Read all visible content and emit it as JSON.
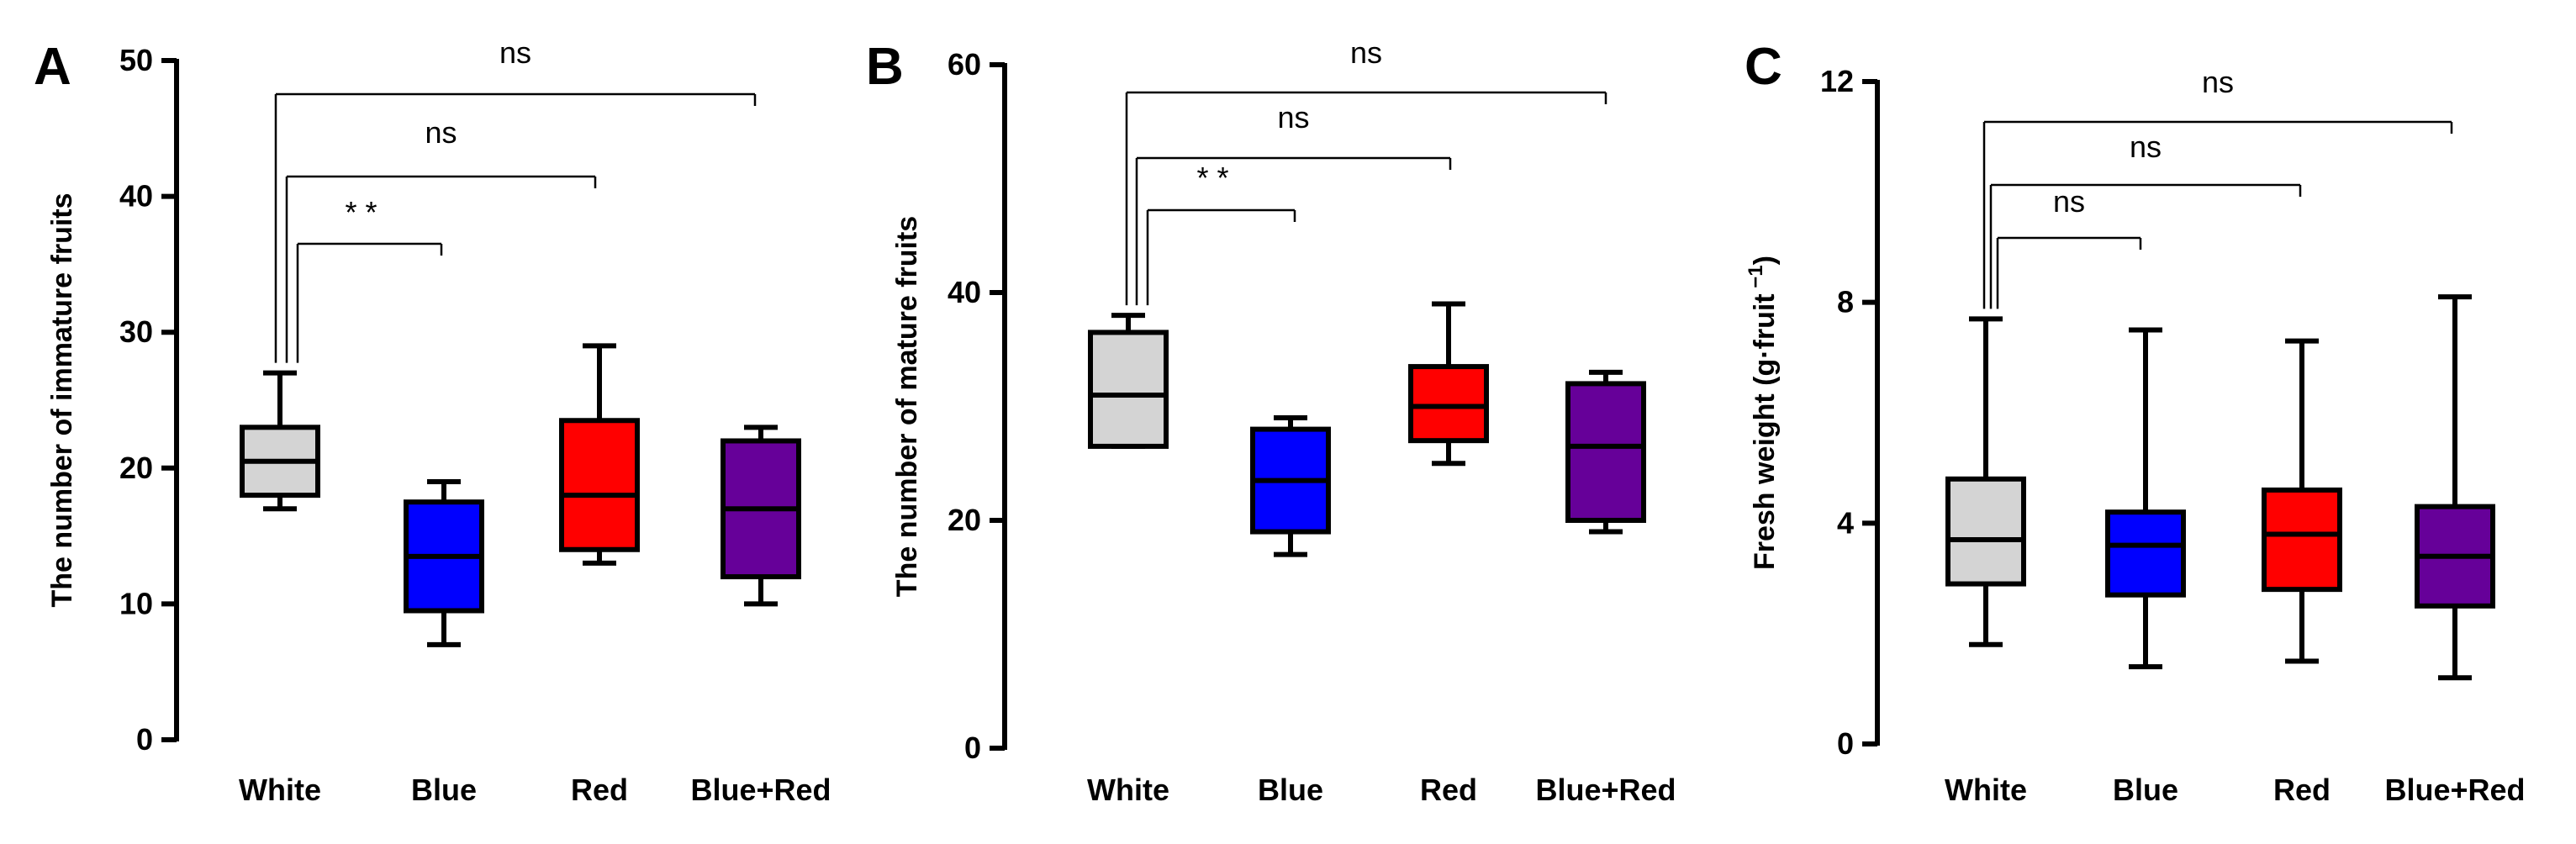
{
  "colors": {
    "White": "#d4d4d4",
    "Blue": "#0000ff",
    "Red": "#ff0000",
    "Blue+Red": "#660099",
    "stroke": "#000000"
  },
  "chart_data": [
    {
      "type": "box",
      "panel": "A",
      "ylabel": "The number of immature fruits",
      "ylim": [
        0,
        50
      ],
      "yticks": [
        0,
        10,
        20,
        30,
        40,
        50
      ],
      "categories": [
        "White",
        "Blue",
        "Red",
        "Blue+Red"
      ],
      "boxes": [
        {
          "category": "White",
          "min": 17,
          "q1": 18,
          "median": 20.5,
          "q3": 23,
          "max": 27
        },
        {
          "category": "Blue",
          "min": 7,
          "q1": 9.5,
          "median": 13.5,
          "q3": 17.5,
          "max": 19
        },
        {
          "category": "Red",
          "min": 13,
          "q1": 14,
          "median": 18,
          "q3": 23.5,
          "max": 29
        },
        {
          "category": "Blue+Red",
          "min": 10,
          "q1": 12,
          "median": 17,
          "q3": 22,
          "max": 23
        }
      ],
      "comparisons": [
        {
          "from": "White",
          "to": "Blue",
          "label": "* *"
        },
        {
          "from": "White",
          "to": "Red",
          "label": "ns"
        },
        {
          "from": "White",
          "to": "Blue+Red",
          "label": "ns"
        }
      ]
    },
    {
      "type": "box",
      "panel": "B",
      "ylabel": "The number of mature fruits",
      "ylim": [
        0,
        60
      ],
      "yticks": [
        0,
        20,
        40,
        60
      ],
      "categories": [
        "White",
        "Blue",
        "Red",
        "Blue+Red"
      ],
      "boxes": [
        {
          "category": "White",
          "min": 26.5,
          "q1": 26.5,
          "median": 31,
          "q3": 36.5,
          "max": 38
        },
        {
          "category": "Blue",
          "min": 17,
          "q1": 19,
          "median": 23.5,
          "q3": 28,
          "max": 29
        },
        {
          "category": "Red",
          "min": 25,
          "q1": 27,
          "median": 30,
          "q3": 33.5,
          "max": 39
        },
        {
          "category": "Blue+Red",
          "min": 19,
          "q1": 20,
          "median": 26.5,
          "q3": 32,
          "max": 33
        }
      ],
      "comparisons": [
        {
          "from": "White",
          "to": "Blue",
          "label": "* *"
        },
        {
          "from": "White",
          "to": "Red",
          "label": "ns"
        },
        {
          "from": "White",
          "to": "Blue+Red",
          "label": "ns"
        }
      ]
    },
    {
      "type": "box",
      "panel": "C",
      "ylabel": "Fresh weight (g·fruit",
      "ylabel_sup": "−1",
      "ylabel_end": ")",
      "ylim": [
        0,
        12
      ],
      "yticks": [
        0,
        4,
        8,
        12
      ],
      "categories": [
        "White",
        "Blue",
        "Red",
        "Blue+Red"
      ],
      "boxes": [
        {
          "category": "White",
          "min": 1.8,
          "q1": 2.9,
          "median": 3.7,
          "q3": 4.8,
          "max": 7.7
        },
        {
          "category": "Blue",
          "min": 1.4,
          "q1": 2.7,
          "median": 3.6,
          "q3": 4.2,
          "max": 7.5
        },
        {
          "category": "Red",
          "min": 1.5,
          "q1": 2.8,
          "median": 3.8,
          "q3": 4.6,
          "max": 7.3
        },
        {
          "category": "Blue+Red",
          "min": 1.2,
          "q1": 2.5,
          "median": 3.4,
          "q3": 4.3,
          "max": 8.1
        }
      ],
      "comparisons": [
        {
          "from": "White",
          "to": "Blue",
          "label": "ns"
        },
        {
          "from": "White",
          "to": "Red",
          "label": "ns"
        },
        {
          "from": "White",
          "to": "Blue+Red",
          "label": "ns"
        }
      ]
    }
  ]
}
